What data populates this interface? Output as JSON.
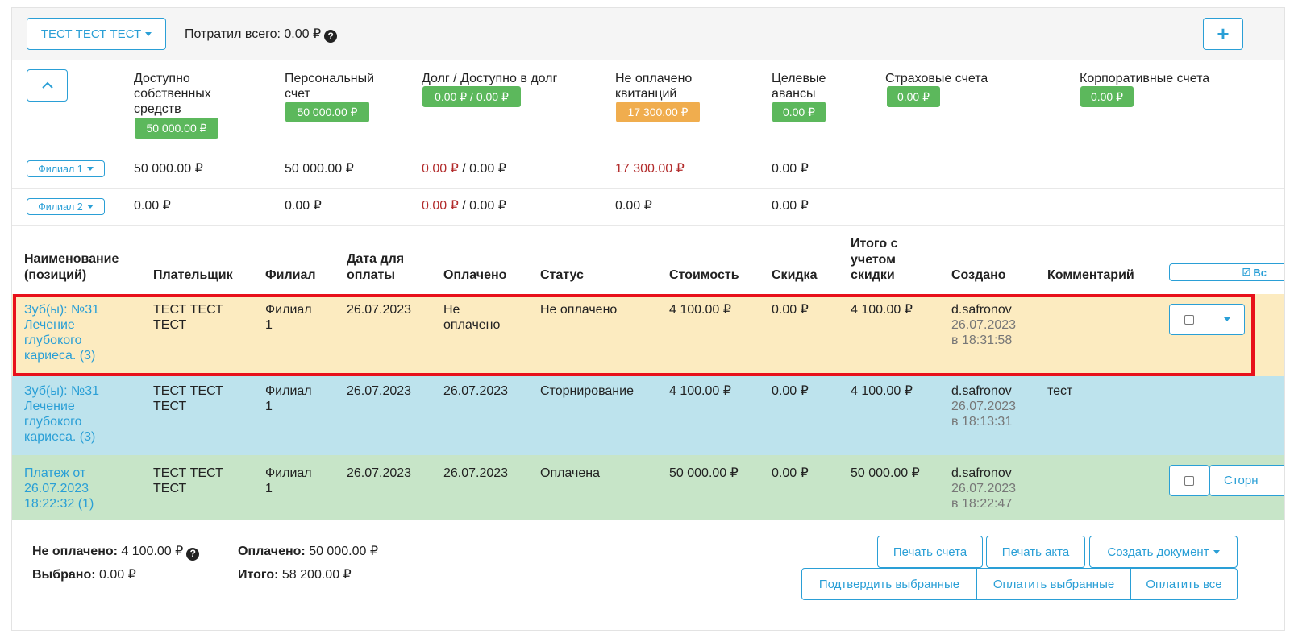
{
  "topbar": {
    "patient_name": "ТЕСТ ТЕСТ ТЕСТ",
    "spent_label": "Потратил всего:",
    "spent_value": "0.00 ₽",
    "help_glyph": "?",
    "add_glyph": "+"
  },
  "summary": {
    "collapse_glyph": "^",
    "columns": [
      {
        "label": "Доступно собственных средств",
        "badge": "50 000.00 ₽",
        "color": "#5cb85c"
      },
      {
        "label": "Персональный счет",
        "badge": "50 000.00 ₽",
        "color": "#5cb85c"
      },
      {
        "label": "Долг / Доступно в долг",
        "badge": "0.00 ₽ / 0.00 ₽",
        "color": "#5cb85c"
      },
      {
        "label": "Не оплачено квитанций",
        "badge": "17 300.00 ₽",
        "color": "#f0ad4e"
      },
      {
        "label": "Целевые авансы",
        "badge": "0.00 ₽",
        "color": "#5cb85c"
      },
      {
        "label": "Страховые счета",
        "badge": "0.00 ₽",
        "color": "#5cb85c"
      },
      {
        "label": "Корпоративные счета",
        "badge": "0.00 ₽",
        "color": "#5cb85c"
      }
    ],
    "branches": [
      {
        "name": "Филиал 1",
        "own": "50 000.00 ₽",
        "personal": "50 000.00 ₽",
        "debt": "0.00 ₽",
        "debt_sep": " / ",
        "debt_avail": "0.00 ₽",
        "unpaid": "17 300.00 ₽",
        "advances": "0.00 ₽"
      },
      {
        "name": "Филиал 2",
        "own": "0.00 ₽",
        "personal": "0.00 ₽",
        "debt": "0.00 ₽",
        "debt_sep": " / ",
        "debt_avail": "0.00 ₽",
        "unpaid": "0.00 ₽",
        "advances": "0.00 ₽"
      }
    ]
  },
  "table": {
    "headers": {
      "name": [
        "Наименование",
        "(позиций)"
      ],
      "payer": "Плательщик",
      "branch": "Филиал",
      "due": [
        "Дата для",
        "оплаты"
      ],
      "paid": "Оплачено",
      "status": "Статус",
      "cost": "Стоимость",
      "discount": "Скидка",
      "total": [
        "Итого с",
        "учетом",
        "скидки"
      ],
      "created": "Создано",
      "comment": "Комментарий",
      "select_all": "Вс"
    },
    "rows": [
      {
        "name": [
          "Зуб(ы): №31",
          "Лечение",
          "глубокого",
          "кариеса. (3)"
        ],
        "payer": [
          "ТЕСТ ТЕСТ",
          "ТЕСТ"
        ],
        "branch": [
          "Филиал",
          "1"
        ],
        "due": "26.07.2023",
        "paid": [
          "Не",
          "оплачено"
        ],
        "status": "Не оплачено",
        "cost": "4 100.00 ₽",
        "discount": "0.00 ₽",
        "total": "4 100.00 ₽",
        "created": [
          "d.safronov",
          "26.07.2023",
          "в 18:31:58"
        ],
        "comment": "",
        "bg": "#fcebc0",
        "highlight": "#e8101b"
      },
      {
        "name": [
          "Зуб(ы): №31",
          "Лечение",
          "глубокого",
          "кариеса. (3)"
        ],
        "payer": [
          "ТЕСТ ТЕСТ",
          "ТЕСТ"
        ],
        "branch": [
          "Филиал",
          "1"
        ],
        "due": "26.07.2023",
        "paid": [
          "26.07.2023",
          ""
        ],
        "status": "Сторнирование",
        "cost": "4 100.00 ₽",
        "discount": "0.00 ₽",
        "total": "4 100.00 ₽",
        "created": [
          "d.safronov",
          "26.07.2023",
          "в 18:13:31"
        ],
        "comment": "тест",
        "bg": "#bde3ed"
      },
      {
        "name": [
          "Платеж от",
          "26.07.2023",
          "18:22:32 (1)"
        ],
        "payer": [
          "ТЕСТ ТЕСТ",
          "ТЕСТ"
        ],
        "branch": [
          "Филиал",
          "1"
        ],
        "due": "26.07.2023",
        "paid": [
          "26.07.2023",
          ""
        ],
        "status": "Оплачена",
        "cost": "50 000.00 ₽",
        "discount": "0.00 ₽",
        "total": "50 000.00 ₽",
        "created": [
          "d.safronov",
          "26.07.2023",
          "в 18:22:47"
        ],
        "comment": "",
        "bg": "#c7e5c8",
        "storno_label": "Сторн"
      }
    ]
  },
  "footer": {
    "unpaid_label": "Не оплачено:",
    "unpaid_value": "4 100.00 ₽",
    "paid_label": "Оплачено:",
    "paid_value": "50 000.00 ₽",
    "selected_label": "Выбрано:",
    "selected_value": "0.00 ₽",
    "total_label": "Итого:",
    "total_value": "58 200.00 ₽",
    "buttons": {
      "print_invoice": "Печать счета",
      "print_act": "Печать акта",
      "create_document": "Создать документ",
      "confirm_selected": "Подтвердить выбранные",
      "pay_selected": "Оплатить выбранные",
      "pay_all": "Оплатить все"
    }
  },
  "colors": {
    "accent": "#2a9fd6",
    "green": "#5cb85c",
    "orange": "#f0ad4e",
    "red": "#b22b2b"
  }
}
